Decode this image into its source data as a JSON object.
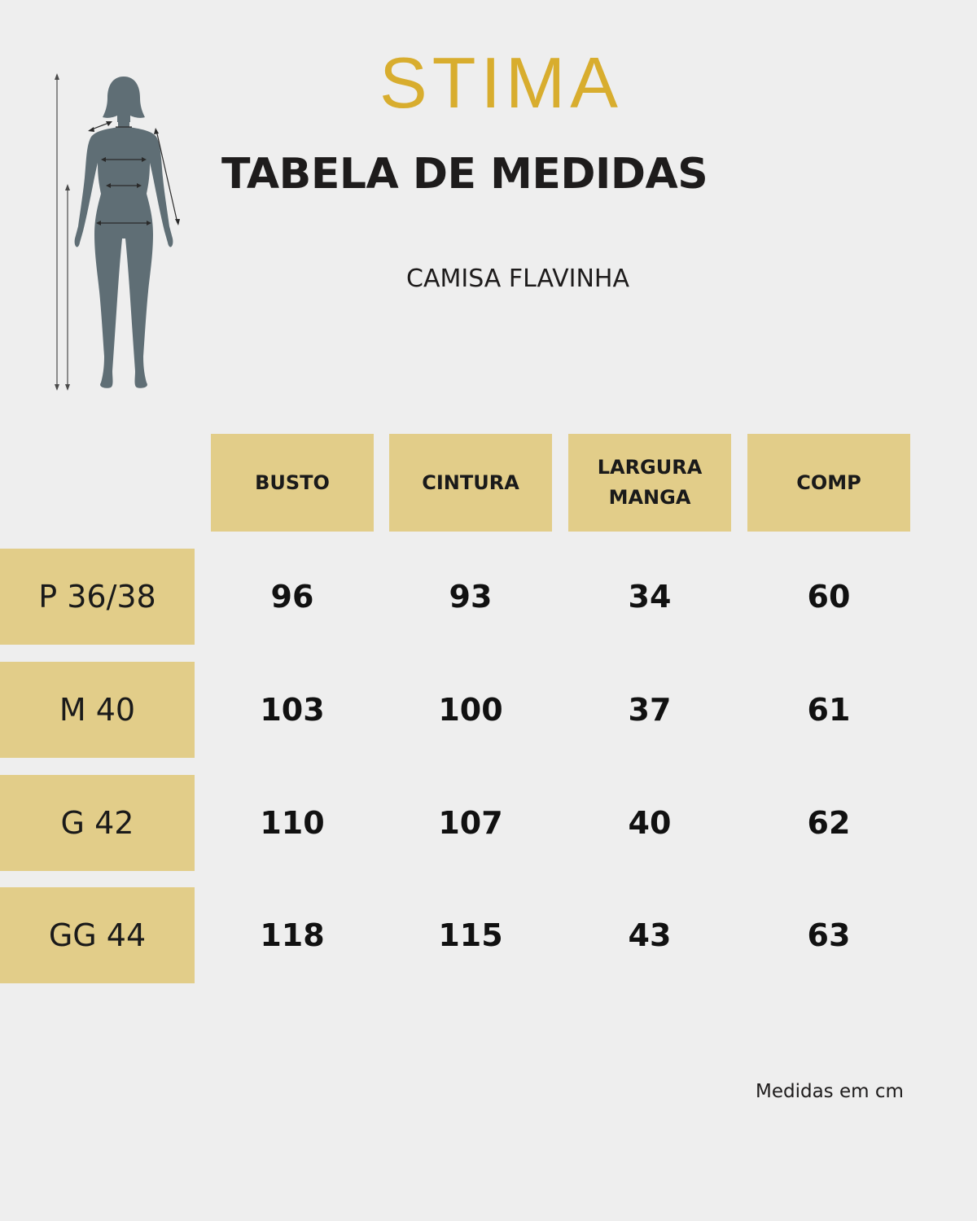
{
  "brand": {
    "logo_text": "STIMA",
    "logo_color": "#d8ad2e"
  },
  "header": {
    "title": "TABELA DE MEDIDAS",
    "product": "CAMISA FLAVINHA"
  },
  "figure": {
    "icon": "female-body-measurement-figure-icon",
    "color": "#5f6e75"
  },
  "table": {
    "accent_color": "#e2cd89",
    "columns": [
      "BUSTO",
      "CINTURA",
      "LARGURA\nMANGA",
      "COMP"
    ],
    "rows": [
      {
        "size": "P 36/38",
        "values": [
          "96",
          "93",
          "34",
          "60"
        ]
      },
      {
        "size": "M 40",
        "values": [
          "103",
          "100",
          "37",
          "61"
        ]
      },
      {
        "size": "G 42",
        "values": [
          "110",
          "107",
          "40",
          "62"
        ]
      },
      {
        "size": "GG 44",
        "values": [
          "118",
          "115",
          "43",
          "63"
        ]
      }
    ]
  },
  "footnote": "Medidas em cm"
}
